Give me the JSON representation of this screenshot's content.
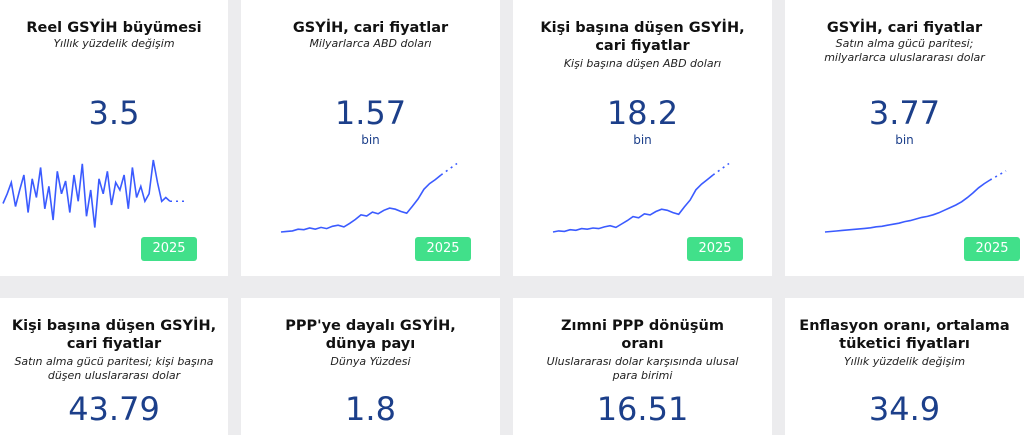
{
  "cards": [
    {
      "title_lines": [
        "Reel GSYİH büyümesi"
      ],
      "subtitle_lines": [
        "Yıllık yüzdelik değişim"
      ],
      "value": "3.5",
      "unit": "",
      "year": "2025",
      "trend": [
        0.42,
        0.55,
        0.7,
        0.38,
        0.6,
        0.8,
        0.3,
        0.75,
        0.5,
        0.9,
        0.35,
        0.65,
        0.2,
        0.85,
        0.55,
        0.72,
        0.3,
        0.8,
        0.45,
        0.95,
        0.25,
        0.6,
        0.1,
        0.75,
        0.55,
        0.85,
        0.4,
        0.7,
        0.6,
        0.8,
        0.35,
        0.9,
        0.5,
        0.65,
        0.45,
        0.55,
        1.0,
        0.7,
        0.45,
        0.5,
        0.45
      ]
    },
    {
      "title_lines": [
        "GSYİH, cari fiyatlar"
      ],
      "subtitle_lines": [
        "Milyarlarca ABD doları"
      ],
      "value": "1.57",
      "unit": "bin",
      "year": "2025",
      "trend": [
        0.0,
        0.01,
        0.02,
        0.05,
        0.04,
        0.07,
        0.05,
        0.08,
        0.06,
        0.1,
        0.12,
        0.09,
        0.15,
        0.22,
        0.3,
        0.28,
        0.35,
        0.32,
        0.38,
        0.42,
        0.4,
        0.36,
        0.33,
        0.45,
        0.58,
        0.75,
        0.85,
        0.92,
        1.0
      ]
    },
    {
      "title_lines": [
        "Kişi başına düşen GSYİH,",
        "cari fiyatlar"
      ],
      "subtitle_lines": [
        "Kişi başına düşen ABD doları"
      ],
      "value": "18.2",
      "unit": "bin",
      "year": "2025",
      "trend": [
        0.0,
        0.02,
        0.01,
        0.04,
        0.03,
        0.06,
        0.05,
        0.07,
        0.06,
        0.09,
        0.11,
        0.08,
        0.14,
        0.2,
        0.27,
        0.25,
        0.32,
        0.3,
        0.36,
        0.4,
        0.38,
        0.34,
        0.31,
        0.44,
        0.56,
        0.74,
        0.84,
        0.92,
        1.0
      ]
    },
    {
      "title_lines": [
        "GSYİH, cari fiyatlar"
      ],
      "subtitle_lines": [
        "Satın alma gücü paritesi;",
        "milyarlarca uluslararası dolar"
      ],
      "value": "3.77",
      "unit": "bin",
      "year": "2025",
      "trend": [
        0.0,
        0.01,
        0.02,
        0.03,
        0.04,
        0.05,
        0.06,
        0.07,
        0.08,
        0.1,
        0.11,
        0.13,
        0.15,
        0.17,
        0.2,
        0.22,
        0.25,
        0.28,
        0.3,
        0.33,
        0.37,
        0.42,
        0.47,
        0.52,
        0.58,
        0.66,
        0.75,
        0.85,
        0.93,
        1.0
      ]
    },
    {
      "title_lines": [
        "Kişi başına düşen GSYİH,",
        "cari fiyatlar"
      ],
      "subtitle_lines": [
        "Satın alma gücü paritesi; kişi başına",
        "düşen uluslararası dolar"
      ],
      "value": "43.79",
      "unit": "",
      "year": "",
      "trend": []
    },
    {
      "title_lines": [
        "PPP'ye dayalı GSYİH,",
        "dünya payı"
      ],
      "subtitle_lines": [
        "Dünya Yüzdesi"
      ],
      "value": "1.8",
      "unit": "",
      "year": "",
      "trend": []
    },
    {
      "title_lines": [
        "Zımni PPP dönüşüm",
        "oranı"
      ],
      "subtitle_lines": [
        "Uluslararası dolar karşısında ulusal",
        "para birimi"
      ],
      "value": "16.51",
      "unit": "",
      "year": "",
      "trend": []
    },
    {
      "title_lines": [
        "Enflasyon oranı, ortalama",
        "tüketici fiyatları"
      ],
      "subtitle_lines": [
        "Yıllık yüzdelik değişim"
      ],
      "value": "34.9",
      "unit": "",
      "year": "",
      "trend": []
    }
  ],
  "colors": {
    "line": "#3b5bff",
    "badge": "#41e08a",
    "value": "#1c3f8a"
  }
}
